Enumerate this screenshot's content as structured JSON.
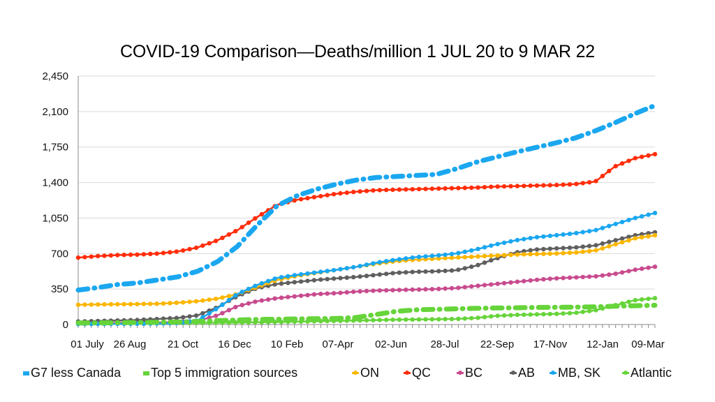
{
  "chart_data": {
    "type": "line",
    "title": "COVID-19 Comparison—Deaths/million 1 JUL 20 to 9 MAR 22",
    "xlabel": "",
    "ylabel": "",
    "ylim": [
      0,
      2450
    ],
    "yticks": [
      "0",
      "350",
      "700",
      "1,050",
      "1,400",
      "1,750",
      "2,100",
      "2,450"
    ],
    "ytick_values": [
      0,
      350,
      700,
      1050,
      1400,
      1750,
      2100,
      2450
    ],
    "xtick_labels": [
      "01 July",
      "26 Aug",
      "21 Oct",
      "16 Dec",
      "10 Feb",
      "07-Apr",
      "02-Jun",
      "28-Jul",
      "22-Sep",
      "17-Nov",
      "12-Jan",
      "09-Mar"
    ],
    "x_note": "points every 4 weeks from 01 July 2020 to 09 Mar 2022",
    "grid": true,
    "legend_position": "bottom",
    "series": [
      {
        "name": "G7 less Canada",
        "color": "#1AA7F0",
        "style": "dashdot",
        "values": [
          340,
          365,
          395,
          410,
          440,
          470,
          525,
          620,
          770,
          980,
          1170,
          1270,
          1335,
          1385,
          1425,
          1450,
          1460,
          1470,
          1480,
          1535,
          1600,
          1650,
          1700,
          1745,
          1790,
          1840,
          1910,
          1990,
          2080,
          2160
        ]
      },
      {
        "name": "Top 5 immigration sources",
        "color": "#66D43A",
        "style": "dashdot",
        "values": [
          15,
          16,
          18,
          20,
          22,
          25,
          30,
          38,
          45,
          50,
          52,
          55,
          58,
          60,
          70,
          100,
          130,
          145,
          150,
          155,
          160,
          163,
          165,
          168,
          170,
          172,
          175,
          180,
          185,
          190
        ]
      },
      {
        "name": "ON",
        "color": "#FBB600",
        "style": "solid",
        "values": [
          195,
          198,
          200,
          202,
          205,
          215,
          230,
          255,
          300,
          370,
          440,
          480,
          510,
          540,
          570,
          600,
          625,
          640,
          650,
          660,
          670,
          680,
          690,
          695,
          700,
          710,
          730,
          790,
          850,
          880
        ]
      },
      {
        "name": "QC",
        "color": "#FF2D0A",
        "style": "solid",
        "values": [
          660,
          675,
          685,
          690,
          700,
          720,
          760,
          830,
          930,
          1060,
          1180,
          1230,
          1260,
          1290,
          1310,
          1325,
          1330,
          1335,
          1340,
          1345,
          1350,
          1360,
          1365,
          1370,
          1375,
          1385,
          1410,
          1560,
          1640,
          1680
        ]
      },
      {
        "name": "BC",
        "color": "#C84B8E",
        "style": "solid",
        "values": [
          15,
          16,
          17,
          18,
          20,
          25,
          35,
          90,
          180,
          230,
          260,
          280,
          300,
          310,
          325,
          335,
          340,
          345,
          350,
          360,
          380,
          400,
          420,
          440,
          455,
          465,
          475,
          500,
          540,
          570
        ]
      },
      {
        "name": "AB",
        "color": "#5F5F5F",
        "style": "solid",
        "values": [
          30,
          35,
          40,
          45,
          55,
          65,
          90,
          170,
          280,
          360,
          400,
          420,
          440,
          455,
          470,
          490,
          510,
          520,
          525,
          535,
          580,
          650,
          710,
          740,
          750,
          760,
          780,
          830,
          880,
          910
        ]
      },
      {
        "name": "MB, SK",
        "color": "#1AA7F0",
        "style": "solid",
        "values": [
          5,
          6,
          7,
          8,
          10,
          15,
          40,
          160,
          300,
          390,
          460,
          490,
          515,
          540,
          570,
          610,
          640,
          665,
          680,
          700,
          740,
          790,
          830,
          860,
          880,
          900,
          930,
          990,
          1050,
          1100
        ]
      },
      {
        "name": "Atlantic",
        "color": "#66D43A",
        "style": "solid",
        "values": [
          10,
          11,
          12,
          13,
          14,
          15,
          16,
          18,
          20,
          22,
          25,
          28,
          32,
          36,
          40,
          44,
          48,
          50,
          52,
          55,
          65,
          85,
          95,
          100,
          105,
          115,
          140,
          190,
          240,
          260
        ]
      }
    ]
  }
}
